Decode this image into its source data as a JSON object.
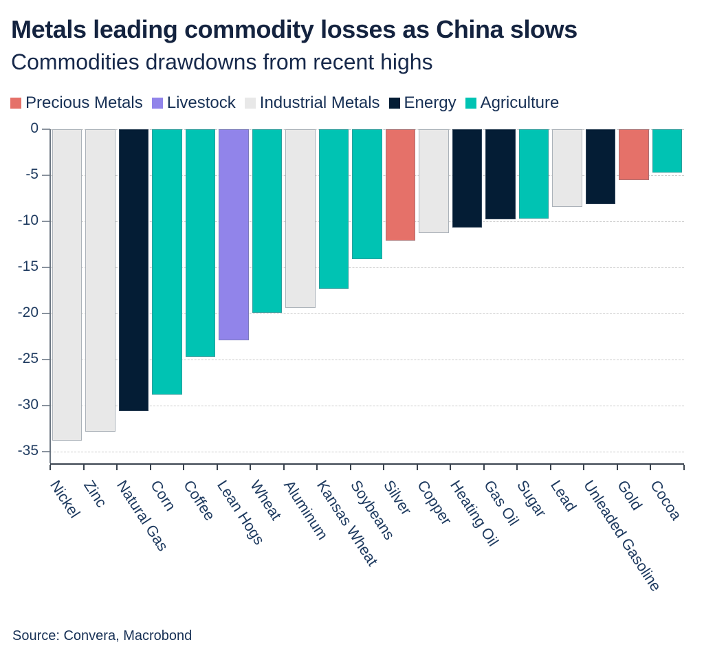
{
  "header": {
    "title": "Metals leading commodity losses as China slows",
    "subtitle": "Commodities drawdowns from recent highs"
  },
  "legend": {
    "items": [
      {
        "label": "Precious Metals",
        "color": "#e57169"
      },
      {
        "label": "Livestock",
        "color": "#9184ea"
      },
      {
        "label": "Industrial Metals",
        "color": "#e8e8e8"
      },
      {
        "label": "Energy",
        "color": "#041d35"
      },
      {
        "label": "Agriculture",
        "color": "#00c3b3"
      }
    ]
  },
  "chart_data": {
    "type": "bar",
    "title": "Metals leading commodity losses as China slows",
    "subtitle": "Commodities drawdowns from recent highs",
    "categories": [
      "Nickel",
      "Zinc",
      "Natural Gas",
      "Corn",
      "Coffee",
      "Lean Hogs",
      "Wheat",
      "Aluminum",
      "Kansas Wheat",
      "Soybeans",
      "Silver",
      "Copper",
      "Heating Oil",
      "Gas Oil",
      "Sugar",
      "Lead",
      "Unleaded Gasoline",
      "Gold",
      "Cocoa"
    ],
    "values": [
      -33.8,
      -32.8,
      -30.6,
      -28.8,
      -24.7,
      -22.9,
      -19.9,
      -19.4,
      -17.3,
      -14.1,
      -12.1,
      -11.3,
      -10.7,
      -9.8,
      -9.7,
      -8.4,
      -8.1,
      -5.5,
      -4.7
    ],
    "bar_groups": [
      "Industrial Metals",
      "Industrial Metals",
      "Energy",
      "Agriculture",
      "Agriculture",
      "Livestock",
      "Agriculture",
      "Industrial Metals",
      "Agriculture",
      "Agriculture",
      "Precious Metals",
      "Industrial Metals",
      "Energy",
      "Energy",
      "Agriculture",
      "Industrial Metals",
      "Energy",
      "Precious Metals",
      "Agriculture"
    ],
    "ylabel": "",
    "xlabel": "",
    "ylim": [
      -35,
      0
    ],
    "ytick_step": 5,
    "ytick_labels": [
      "0",
      "-5",
      "-10",
      "-15",
      "-20",
      "-25",
      "-30",
      "-35"
    ],
    "grid": "horizontal-dashed",
    "legend_position": "top"
  },
  "footer": {
    "source": "Source: Convera, Macrobond"
  }
}
